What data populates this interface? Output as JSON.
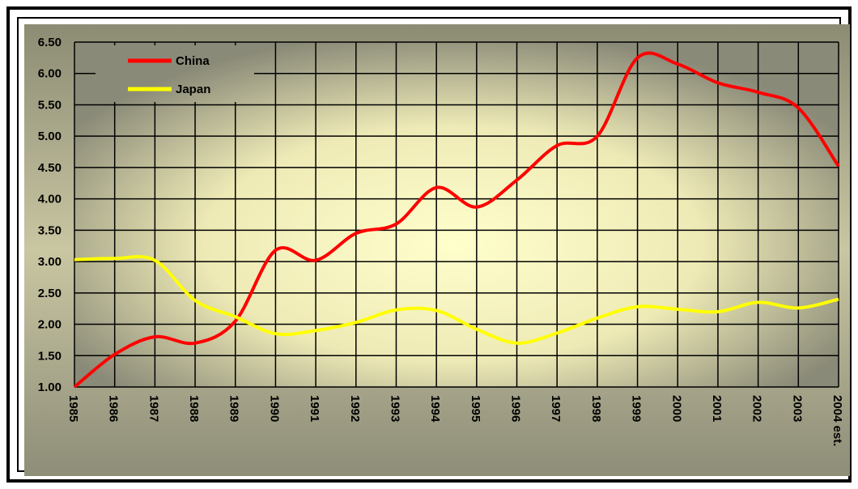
{
  "chart_data": {
    "type": "line",
    "categories": [
      "1985",
      "1986",
      "1987",
      "1988",
      "1989",
      "1990",
      "1991",
      "1992",
      "1993",
      "1994",
      "1995",
      "1996",
      "1997",
      "1998",
      "1999",
      "2000",
      "2001",
      "2002",
      "2003",
      "2004 est."
    ],
    "series": [
      {
        "name": "China",
        "color": "#ff0000",
        "values": [
          1.0,
          1.52,
          1.8,
          1.7,
          2.05,
          3.18,
          3.02,
          3.45,
          3.6,
          4.18,
          3.87,
          4.3,
          4.85,
          5.0,
          6.25,
          6.15,
          5.85,
          5.7,
          5.45,
          4.52
        ]
      },
      {
        "name": "Japan",
        "color": "#ffff00",
        "values": [
          3.03,
          3.05,
          3.02,
          2.38,
          2.12,
          1.85,
          1.9,
          2.03,
          2.23,
          2.22,
          1.92,
          1.7,
          1.86,
          2.1,
          2.28,
          2.24,
          2.2,
          2.35,
          2.26,
          2.4
        ]
      }
    ],
    "ylim": [
      1,
      6.5
    ],
    "yticks": [
      {
        "value": 1,
        "label": "1.00"
      },
      {
        "value": 1.5,
        "label": "1.50"
      },
      {
        "value": 2,
        "label": "2.00"
      },
      {
        "value": 2.5,
        "label": "2.50"
      },
      {
        "value": 3,
        "label": "3.00"
      },
      {
        "value": 3.5,
        "label": "3.50"
      },
      {
        "value": 4,
        "label": "4.00"
      },
      {
        "value": 4.5,
        "label": "4.50"
      },
      {
        "value": 5,
        "label": "5.00"
      },
      {
        "value": 5.5,
        "label": "5.50"
      },
      {
        "value": 6,
        "label": "6.00"
      },
      {
        "value": 6.5,
        "label": "6.50"
      }
    ],
    "grid": true,
    "legend": "top-left"
  }
}
